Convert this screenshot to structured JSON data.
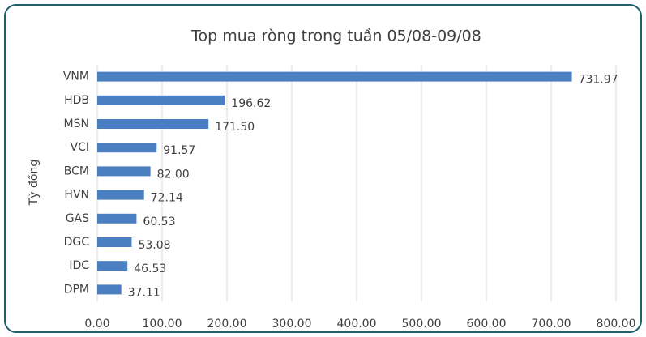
{
  "chart_data": {
    "type": "bar",
    "orientation": "horizontal",
    "title": "Top mua ròng trong tuần 05/08-09/08",
    "y_label": "Tỷ đồng",
    "categories": [
      "VNM",
      "HDB",
      "MSN",
      "VCI",
      "BCM",
      "HVN",
      "GAS",
      "DGC",
      "IDC",
      "DPM"
    ],
    "values": [
      731.97,
      196.62,
      171.5,
      91.57,
      82,
      72.14,
      60.53,
      53.08,
      46.53,
      37.11
    ],
    "value_labels": [
      "731.97",
      "196.62",
      "171.50",
      "91.57",
      "82.00",
      "72.14",
      "60.53",
      "53.08",
      "46.53",
      "37.11"
    ],
    "color": "#4a7fc1",
    "xlim": [
      0,
      800
    ],
    "xticks": [
      {
        "value": 0,
        "label": "0.00"
      },
      {
        "value": 100,
        "label": "100.00"
      },
      {
        "value": 200,
        "label": "200.00"
      },
      {
        "value": 300,
        "label": "300.00"
      },
      {
        "value": 400,
        "label": "400.00"
      },
      {
        "value": 500,
        "label": "500.00"
      },
      {
        "value": 600,
        "label": "600.00"
      },
      {
        "value": 700,
        "label": "700.00"
      },
      {
        "value": 800,
        "label": "800.00"
      }
    ],
    "grid": true
  }
}
